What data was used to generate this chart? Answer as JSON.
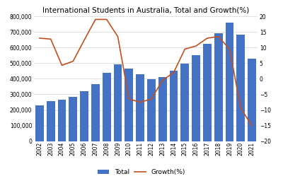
{
  "years": [
    2002,
    2003,
    2004,
    2005,
    2006,
    2007,
    2008,
    2009,
    2010,
    2011,
    2012,
    2013,
    2014,
    2015,
    2016,
    2017,
    2018,
    2019,
    2020,
    2021
  ],
  "totals": [
    228000,
    257000,
    268000,
    283000,
    318000,
    365000,
    437000,
    491000,
    465000,
    428000,
    399000,
    410000,
    453000,
    497000,
    553000,
    624000,
    692000,
    758000,
    683000,
    530000
  ],
  "growth": [
    13.0,
    12.7,
    4.3,
    5.6,
    12.4,
    19.0,
    19.0,
    13.5,
    -6.5,
    -7.5,
    -6.5,
    -0.5,
    2.0,
    9.5,
    10.5,
    13.0,
    13.5,
    9.5,
    -9.5,
    -15.0
  ],
  "bar_color": "#4472C4",
  "line_color": "#C05020",
  "title": "International Students in Australia, Total and Growth(%)",
  "ylim_left": [
    0,
    800000
  ],
  "ylim_right": [
    -20,
    20
  ],
  "yticks_left": [
    0,
    100000,
    200000,
    300000,
    400000,
    500000,
    600000,
    700000,
    800000
  ],
  "yticks_right": [
    -20,
    -15,
    -10,
    -5,
    0,
    5,
    10,
    15,
    20
  ],
  "legend_labels": [
    "Total",
    "Growth(%)"
  ],
  "bg_color": "#ffffff",
  "title_fontsize": 7.5,
  "tick_fontsize": 5.5,
  "legend_fontsize": 6.5
}
